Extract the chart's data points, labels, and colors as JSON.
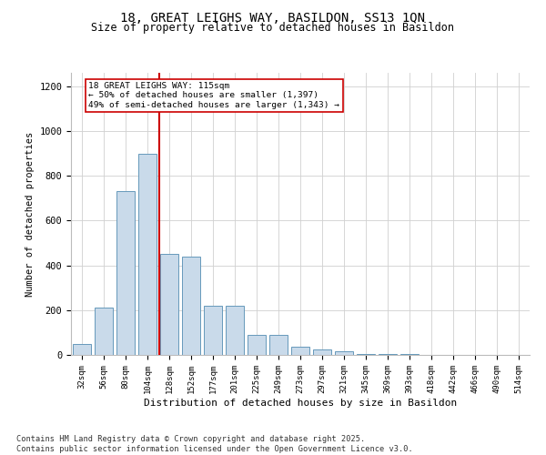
{
  "title1": "18, GREAT LEIGHS WAY, BASILDON, SS13 1QN",
  "title2": "Size of property relative to detached houses in Basildon",
  "xlabel": "Distribution of detached houses by size in Basildon",
  "ylabel": "Number of detached properties",
  "categories": [
    "32sqm",
    "56sqm",
    "80sqm",
    "104sqm",
    "128sqm",
    "152sqm",
    "177sqm",
    "201sqm",
    "225sqm",
    "249sqm",
    "273sqm",
    "297sqm",
    "321sqm",
    "345sqm",
    "369sqm",
    "393sqm",
    "418sqm",
    "442sqm",
    "466sqm",
    "490sqm",
    "514sqm"
  ],
  "values": [
    50,
    210,
    730,
    900,
    450,
    440,
    220,
    220,
    90,
    90,
    35,
    25,
    15,
    5,
    5,
    3,
    2,
    1,
    1,
    1,
    1
  ],
  "bar_color": "#c9daea",
  "bar_edge_color": "#6699bb",
  "vline_x_index": 3.55,
  "vline_color": "#cc0000",
  "annotation_text": "18 GREAT LEIGHS WAY: 115sqm\n← 50% of detached houses are smaller (1,397)\n49% of semi-detached houses are larger (1,343) →",
  "annotation_box_color": "#ffffff",
  "annotation_box_edge": "#cc0000",
  "footnote": "Contains HM Land Registry data © Crown copyright and database right 2025.\nContains public sector information licensed under the Open Government Licence v3.0.",
  "ylim": [
    0,
    1260
  ],
  "yticks": [
    0,
    200,
    400,
    600,
    800,
    1000,
    1200
  ],
  "background_color": "#ffffff",
  "grid_color": "#d0d0d0",
  "title1_fontsize": 10,
  "title2_fontsize": 8.5
}
